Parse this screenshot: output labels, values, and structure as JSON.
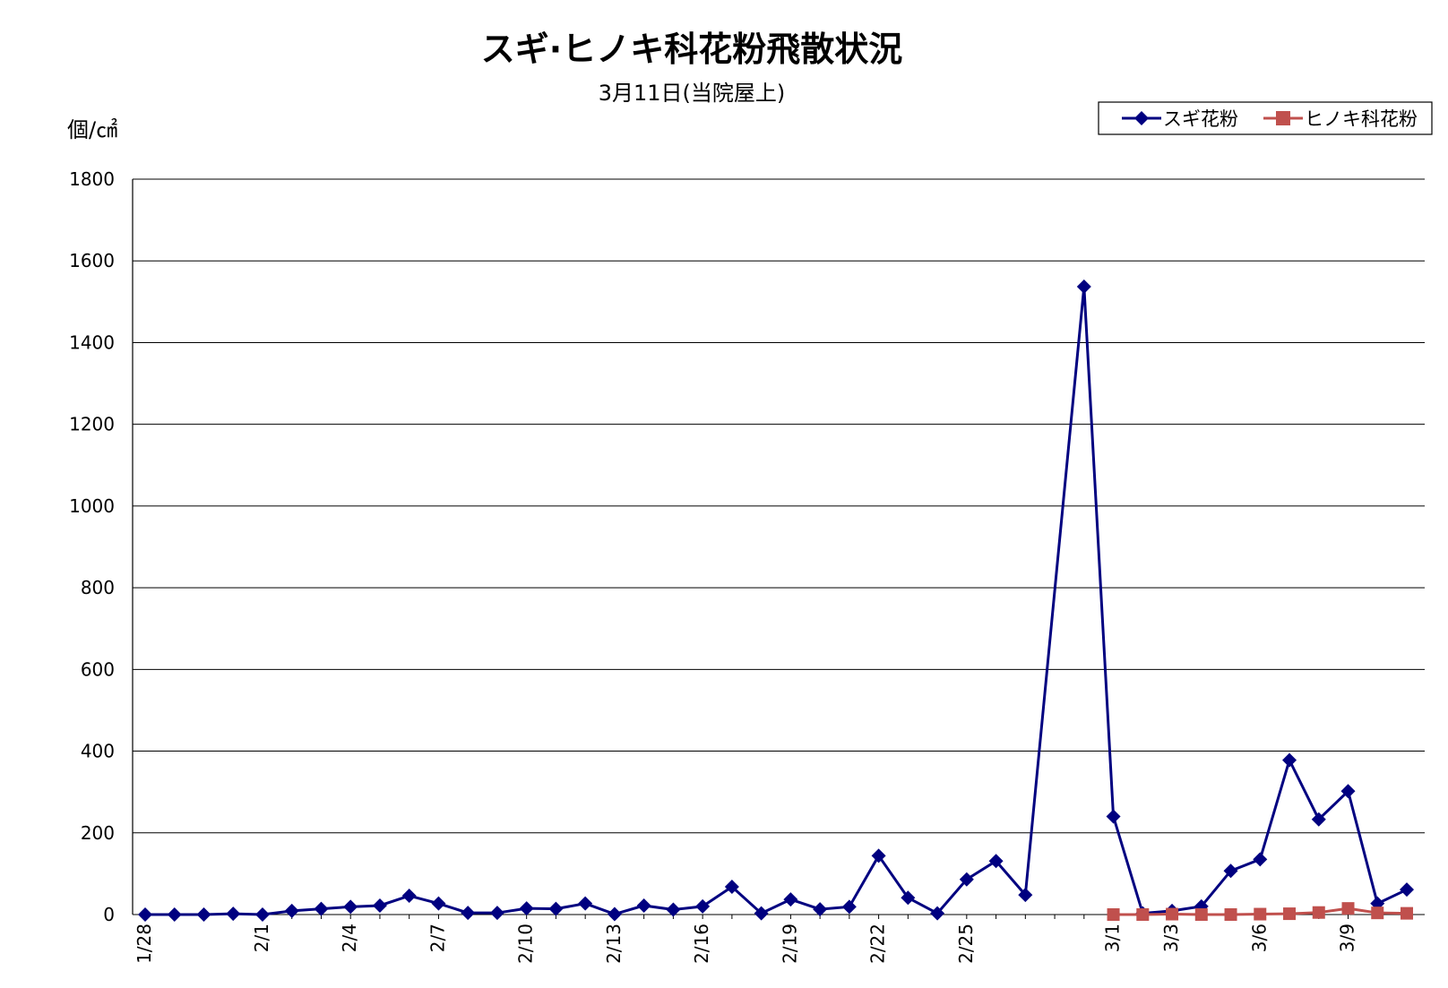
{
  "chart_data": {
    "type": "line",
    "title": "スギ·ヒノキ科花粉飛散状況",
    "subtitle": "3月11日(当院屋上)",
    "ylabel": "個/㎠",
    "ylim": [
      0,
      1800
    ],
    "yticks": [
      0,
      200,
      400,
      600,
      800,
      1000,
      1200,
      1400,
      1600,
      1800
    ],
    "grid": true,
    "legend_position": "top-right",
    "x": [
      "1/28",
      "1/29",
      "1/30",
      "1/31",
      "2/1",
      "2/2",
      "2/3",
      "2/4",
      "2/5",
      "2/6",
      "2/7",
      "2/8",
      "2/9",
      "2/10",
      "2/11",
      "2/12",
      "2/13",
      "2/14",
      "2/15",
      "2/16",
      "2/17",
      "2/18",
      "2/19",
      "2/20",
      "2/21",
      "2/22",
      "2/23",
      "2/24",
      "2/25",
      "2/26",
      "2/27",
      "2/28",
      "2/29",
      "3/1",
      "3/2",
      "3/3",
      "3/4",
      "3/5",
      "3/6",
      "3/7",
      "3/8",
      "3/9",
      "3/10",
      "3/11"
    ],
    "x_tick_labels": [
      "1/28",
      "2/1",
      "2/4",
      "2/7",
      "2/10",
      "2/13",
      "2/16",
      "2/19",
      "2/22",
      "2/25",
      "3/1",
      "3/3",
      "3/6",
      "3/9"
    ],
    "series": [
      {
        "name": "スギ花粉",
        "color": "#000080",
        "marker": "diamond",
        "values": [
          0,
          0,
          0,
          2,
          0,
          9,
          14,
          19,
          22,
          46,
          27,
          4,
          4,
          15,
          14,
          27,
          1,
          22,
          12,
          20,
          68,
          3,
          37,
          13,
          19,
          144,
          41,
          3,
          86,
          131,
          48,
          null,
          1537,
          240,
          3,
          9,
          20,
          107,
          135,
          378,
          233,
          302,
          27,
          61
        ]
      },
      {
        "name": "ヒノキ科花粉",
        "color": "#C0504D",
        "marker": "square",
        "values": [
          null,
          null,
          null,
          null,
          null,
          null,
          null,
          null,
          null,
          null,
          null,
          null,
          null,
          null,
          null,
          null,
          null,
          null,
          null,
          null,
          null,
          null,
          null,
          null,
          null,
          null,
          null,
          null,
          null,
          null,
          null,
          null,
          null,
          0,
          0,
          1,
          0,
          0,
          1,
          2,
          5,
          15,
          4,
          3
        ]
      }
    ]
  }
}
